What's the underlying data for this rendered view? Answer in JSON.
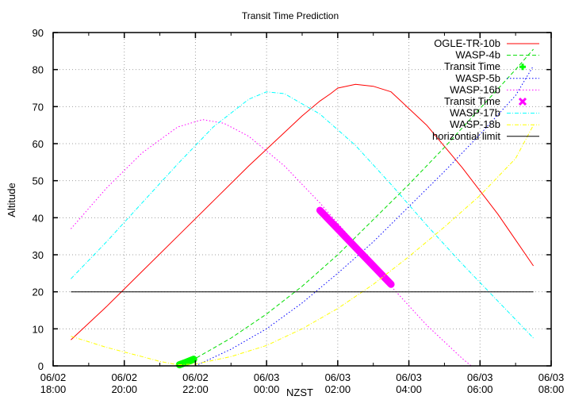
{
  "chart_data": {
    "type": "line",
    "title": "Transit Time Prediction",
    "xlabel": "NZST",
    "ylabel": "Altitude",
    "ylim": [
      0,
      90
    ],
    "yticks": [
      0,
      10,
      20,
      30,
      40,
      50,
      60,
      70,
      80,
      90
    ],
    "xlim_hours": [
      18,
      32
    ],
    "xticks": [
      {
        "hour": 18,
        "line1": "06/02",
        "line2": "18:00"
      },
      {
        "hour": 20,
        "line1": "06/02",
        "line2": "20:00"
      },
      {
        "hour": 22,
        "line1": "06/02",
        "line2": "22:00"
      },
      {
        "hour": 24,
        "line1": "06/03",
        "line2": "00:00"
      },
      {
        "hour": 26,
        "line1": "06/03",
        "line2": "02:00"
      },
      {
        "hour": 28,
        "line1": "06/03",
        "line2": "04:00"
      },
      {
        "hour": 30,
        "line1": "06/03",
        "line2": "06:00"
      },
      {
        "hour": 32,
        "line1": "06/03",
        "line2": "08:00"
      }
    ],
    "grid": true,
    "legend_position": "top-right",
    "series": [
      {
        "name": "OGLE-TR-10b",
        "color": "#ff0000",
        "style": "solid",
        "x": [
          18.5,
          19.5,
          20.5,
          21.5,
          22.5,
          23.5,
          24.5,
          25.0,
          25.5,
          25.8,
          26.0,
          26.5,
          27.0,
          27.5,
          28.5,
          29.5,
          30.5,
          31.5
        ],
        "y": [
          7,
          16,
          25.5,
          35,
          44.5,
          54,
          63,
          67.5,
          71.5,
          73.5,
          75,
          76,
          75.5,
          74,
          65,
          53.5,
          41,
          27
        ]
      },
      {
        "name": "WASP-4b",
        "color": "#00dd00",
        "style": "dashed",
        "x": [
          21.55,
          22.0,
          23.0,
          24.0,
          25.0,
          26.0,
          27.0,
          28.0,
          29.0,
          30.0,
          31.0,
          31.5
        ],
        "y": [
          0,
          2,
          7.5,
          14,
          21.5,
          30,
          39.5,
          49,
          59,
          69.5,
          80,
          85.5
        ]
      },
      {
        "name": "Transit Time",
        "color": "#00ff00",
        "style": "thick",
        "x": [
          21.55,
          21.75,
          21.95
        ],
        "y": [
          0.3,
          1,
          1.8
        ]
      },
      {
        "name": "WASP-5b",
        "color": "#0000ff",
        "style": "dotted",
        "x": [
          22.0,
          23.0,
          24.0,
          25.0,
          26.0,
          27.0,
          28.0,
          29.0,
          30.0,
          31.0,
          31.5
        ],
        "y": [
          0,
          4.5,
          10,
          17,
          25,
          33.5,
          43,
          52.5,
          62.5,
          73,
          81
        ]
      },
      {
        "name": "WASP-16b",
        "color": "#ff00ff",
        "style": "dotted",
        "x": [
          18.5,
          19.5,
          20.5,
          21.5,
          22.2,
          22.8,
          23.5,
          24.5,
          25.5,
          26.5,
          27.5,
          28.5,
          29.5,
          29.75
        ],
        "y": [
          37,
          48,
          57.5,
          64.5,
          66.5,
          65.5,
          62,
          54,
          44,
          33,
          21.5,
          11,
          2,
          0
        ]
      },
      {
        "name": "Transit Time",
        "color": "#ff00ff",
        "style": "thick",
        "x": [
          25.5,
          26.5,
          27.5
        ],
        "y": [
          42,
          32,
          22
        ]
      },
      {
        "name": "WASP-17b",
        "color": "#00ffff",
        "style": "dash-dot",
        "x": [
          18.5,
          19.5,
          20.5,
          21.5,
          22.5,
          23.5,
          24.0,
          24.5,
          25.5,
          26.5,
          27.5,
          28.5,
          29.5,
          30.5,
          31.5
        ],
        "y": [
          23.5,
          33.5,
          44,
          54.5,
          64.5,
          72,
          74,
          73.5,
          68,
          59.5,
          49,
          38,
          27.5,
          17.5,
          7.5
        ]
      },
      {
        "name": "WASP-18b",
        "color": "#ffff00",
        "style": "dash-dot",
        "x": [
          18.5,
          19.5,
          20.5,
          21.0,
          21.5,
          22.0,
          23.0,
          24.0,
          25.0,
          26.0,
          27.0,
          28.0,
          29.0,
          30.0,
          31.0,
          31.5
        ],
        "y": [
          8,
          5,
          2.5,
          1.2,
          0.3,
          0.5,
          2.5,
          5.5,
          10,
          15.5,
          22,
          29.5,
          37.5,
          46,
          56,
          65
        ]
      },
      {
        "name": "horizontial limit",
        "color": "#000000",
        "style": "solid",
        "x": [
          18.5,
          31.5
        ],
        "y": [
          20,
          20
        ]
      }
    ]
  }
}
